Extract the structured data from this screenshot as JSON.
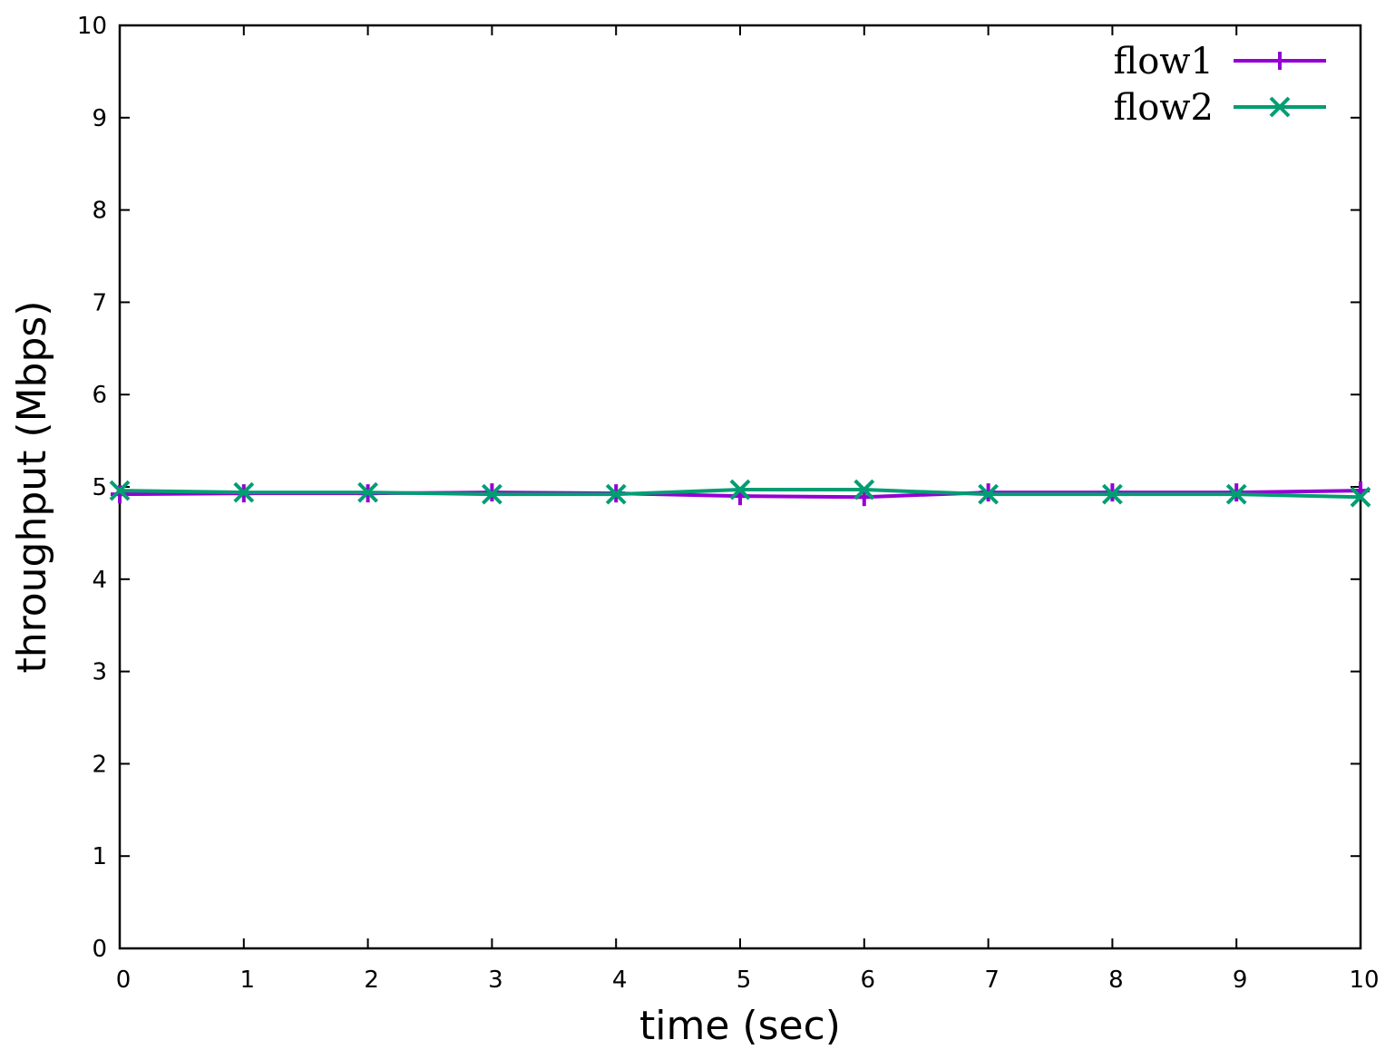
{
  "chart_data": {
    "type": "line",
    "title": "",
    "xlabel": "time (sec)",
    "ylabel": "throughput (Mbps)",
    "xlim": [
      0,
      10
    ],
    "ylim": [
      0,
      10
    ],
    "xticks": [
      "0",
      "1",
      "2",
      "3",
      "4",
      "5",
      "6",
      "7",
      "8",
      "9",
      "10"
    ],
    "yticks": [
      "0",
      "1",
      "2",
      "3",
      "4",
      "5",
      "6",
      "7",
      "8",
      "9",
      "10"
    ],
    "grid": false,
    "legend_position": "top-right",
    "x": [
      0,
      1,
      2,
      3,
      4,
      5,
      6,
      7,
      8,
      9,
      10
    ],
    "series": [
      {
        "name": "flow1",
        "color": "#9400d3",
        "marker": "plus",
        "values": [
          4.92,
          4.93,
          4.93,
          4.94,
          4.93,
          4.9,
          4.89,
          4.94,
          4.94,
          4.94,
          4.96
        ]
      },
      {
        "name": "flow2",
        "color": "#009e73",
        "marker": "cross",
        "values": [
          4.96,
          4.94,
          4.94,
          4.92,
          4.92,
          4.97,
          4.97,
          4.92,
          4.92,
          4.92,
          4.89
        ]
      }
    ]
  }
}
